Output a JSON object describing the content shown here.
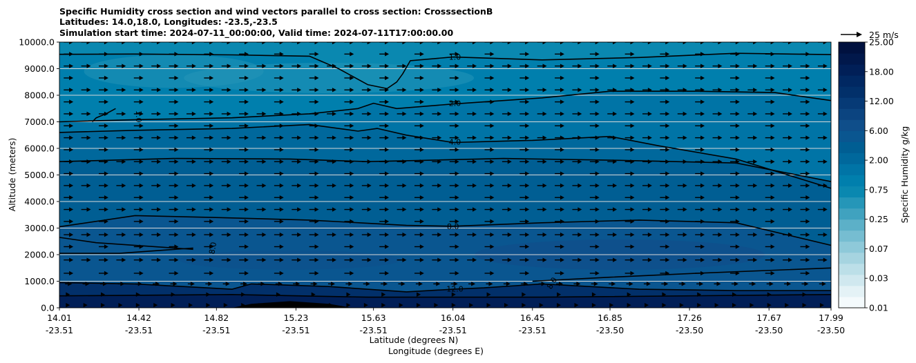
{
  "chart_data": {
    "type": "contourf",
    "title_lines": [
      "Specific Humidity cross section and wind vectors parallel to cross section: CrosssectionB",
      "Latitudes: 14.0,18.0, Longitudes: -23.5,-23.5",
      "Simulation start time: 2024-07-11_00:00:00, Valid time: 2024-07-11T17:00:00.00"
    ],
    "ylabel": "Altitude (meters)",
    "xlabel_lat": "Latitude (degrees N)",
    "xlabel_lon": "Longitude (degrees E)",
    "ylim": [
      0,
      10000
    ],
    "xlim": [
      14.01,
      17.99
    ],
    "yticks": [
      "0.0",
      "1000.0",
      "2000.0",
      "3000.0",
      "4000.0",
      "5000.0",
      "6000.0",
      "7000.0",
      "8000.0",
      "9000.0",
      "10000.0"
    ],
    "xticks": [
      {
        "lat": "14.01",
        "lon": "-23.51"
      },
      {
        "lat": "14.42",
        "lon": "-23.51"
      },
      {
        "lat": "14.82",
        "lon": "-23.51"
      },
      {
        "lat": "15.23",
        "lon": "-23.51"
      },
      {
        "lat": "15.63",
        "lon": "-23.51"
      },
      {
        "lat": "16.04",
        "lon": "-23.51"
      },
      {
        "lat": "16.45",
        "lon": "-23.51"
      },
      {
        "lat": "16.85",
        "lon": "-23.50"
      },
      {
        "lat": "17.26",
        "lon": "-23.50"
      },
      {
        "lat": "17.67",
        "lon": "-23.50"
      },
      {
        "lat": "17.99",
        "lon": "-23.50"
      }
    ],
    "colorbar": {
      "label": "Specific Humidity g/kg",
      "tick_labels": [
        "0.01",
        "0.03",
        "0.07",
        "0.25",
        "0.75",
        "2.00",
        "6.00",
        "12.00",
        "18.00",
        "25.00"
      ],
      "colors": [
        "#f4fafc",
        "#e4f2f6",
        "#d0e8ef",
        "#bcdfe8",
        "#a6d4e0",
        "#8ec9d9",
        "#76bdd1",
        "#5cb0c8",
        "#40a2bf",
        "#2596b8",
        "#0a88b0",
        "#007fad",
        "#0074a6",
        "#00689c",
        "#005e93",
        "#0a5690",
        "#0f4e8a",
        "#0b4480",
        "#063a76",
        "#02306a",
        "#012862",
        "#011f57",
        "#01184b",
        "#00113f"
      ]
    },
    "quiver_key": {
      "label": "25 m/s",
      "value": 25
    },
    "contour_lines": [
      {
        "label": "1.0",
        "points": [
          [
            14.01,
            9540
          ],
          [
            14.4,
            9550
          ],
          [
            14.9,
            9520
          ],
          [
            15.3,
            9470
          ],
          [
            15.45,
            9000
          ],
          [
            15.6,
            8400
          ],
          [
            15.7,
            8250
          ],
          [
            15.75,
            8500
          ],
          [
            15.78,
            8800
          ],
          [
            15.82,
            9300
          ],
          [
            16.04,
            9440
          ],
          [
            16.5,
            9330
          ],
          [
            17.0,
            9420
          ],
          [
            17.5,
            9580
          ],
          [
            17.99,
            9530
          ]
        ]
      },
      {
        "label": "1.0",
        "points": [
          [
            14.3,
            7500
          ],
          [
            14.25,
            7300
          ],
          [
            14.2,
            7150
          ],
          [
            14.18,
            7000
          ]
        ]
      },
      {
        "label": "2.0",
        "points": [
          [
            14.01,
            7000
          ],
          [
            14.4,
            7080
          ],
          [
            14.9,
            7150
          ],
          [
            15.3,
            7300
          ],
          [
            15.55,
            7500
          ],
          [
            15.63,
            7700
          ],
          [
            15.75,
            7500
          ],
          [
            16.04,
            7670
          ],
          [
            16.5,
            7900
          ],
          [
            16.85,
            8150
          ],
          [
            17.3,
            8150
          ],
          [
            17.7,
            8100
          ],
          [
            17.99,
            7800
          ]
        ]
      },
      {
        "label": "4.0",
        "points": [
          [
            14.01,
            6600
          ],
          [
            14.4,
            6680
          ],
          [
            14.9,
            6750
          ],
          [
            15.3,
            6900
          ],
          [
            15.55,
            6650
          ],
          [
            15.65,
            6750
          ],
          [
            15.8,
            6500
          ],
          [
            16.04,
            6220
          ],
          [
            16.45,
            6300
          ],
          [
            16.85,
            6450
          ],
          [
            17.1,
            6100
          ],
          [
            17.5,
            5600
          ],
          [
            17.99,
            4500
          ]
        ]
      },
      {
        "label": "",
        "points": [
          [
            14.01,
            5500
          ],
          [
            14.6,
            5620
          ],
          [
            15.2,
            5600
          ],
          [
            15.6,
            5500
          ],
          [
            16.3,
            5620
          ],
          [
            16.9,
            5550
          ],
          [
            17.5,
            5450
          ],
          [
            17.99,
            4750
          ]
        ]
      },
      {
        "label": "8.0",
        "points": [
          [
            14.01,
            3050
          ],
          [
            14.4,
            3470
          ],
          [
            14.8,
            3400
          ],
          [
            15.3,
            3300
          ],
          [
            15.8,
            3100
          ],
          [
            16.04,
            3070
          ],
          [
            16.5,
            3200
          ],
          [
            17.0,
            3300
          ],
          [
            17.5,
            3200
          ],
          [
            17.99,
            2350
          ]
        ]
      },
      {
        "label": "8.0",
        "points": [
          [
            14.01,
            2050
          ],
          [
            14.32,
            2050
          ],
          [
            14.7,
            2250
          ]
        ]
      },
      {
        "label": "",
        "points": [
          [
            14.01,
            2650
          ],
          [
            14.2,
            2450
          ],
          [
            14.7,
            2200
          ]
        ]
      },
      {
        "label": "8.0",
        "points": [
          [
            16.45,
            1000
          ],
          [
            16.85,
            1150
          ],
          [
            17.3,
            1300
          ],
          [
            17.99,
            1500
          ]
        ]
      },
      {
        "label": "12.0",
        "points": [
          [
            14.01,
            950
          ],
          [
            14.4,
            900
          ],
          [
            14.9,
            700
          ],
          [
            15.0,
            900
          ],
          [
            15.4,
            800
          ],
          [
            15.8,
            600
          ],
          [
            16.04,
            700
          ],
          [
            16.2,
            750
          ],
          [
            16.5,
            900
          ],
          [
            17.0,
            700
          ],
          [
            17.5,
            650
          ],
          [
            17.99,
            650
          ]
        ]
      },
      {
        "label": "",
        "points": [
          [
            14.01,
            450
          ],
          [
            14.9,
            500
          ],
          [
            15.6,
            400
          ],
          [
            16.5,
            400
          ],
          [
            17.99,
            500
          ]
        ]
      }
    ],
    "terrain": {
      "x": [
        14.9,
        15.0,
        15.2,
        15.4,
        15.52
      ],
      "y": [
        0,
        150,
        250,
        150,
        0
      ]
    },
    "wind_vectors": {
      "u_ms": 9,
      "row_altitudes": [
        100,
        500,
        900,
        1300,
        1800,
        2300,
        2750,
        3250,
        3700,
        4150,
        4600,
        5050,
        5500,
        5950,
        6400,
        6850,
        7300,
        7750,
        8200,
        8650,
        9100,
        9550,
        10000
      ]
    }
  }
}
